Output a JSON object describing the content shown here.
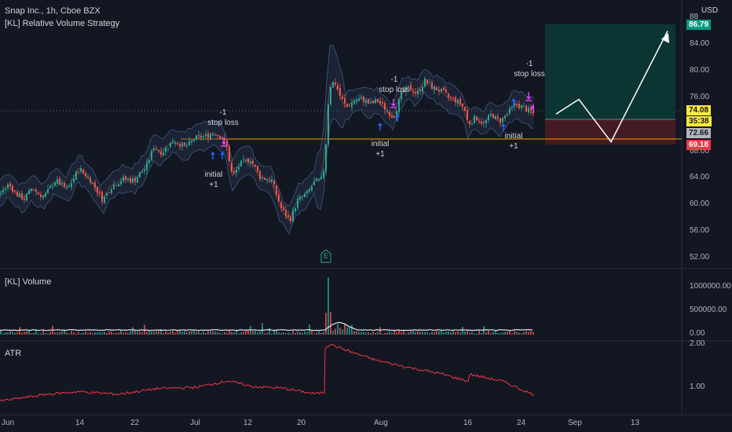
{
  "header": {
    "symbol_line": "Snap Inc., 1h, Cboe BZX",
    "strategy_line": "[KL] Relative Volume Strategy",
    "currency": "USD"
  },
  "price_axis": {
    "ticks": [
      "88",
      "84.00",
      "80.00",
      "76.00",
      "64.00",
      "60.00",
      "56.00",
      "52.00"
    ],
    "tags": {
      "target": "86.79",
      "last": "74.08",
      "countdown": "35:38",
      "entry": "72.66",
      "stop": "69.18",
      "hidden_tick": "68.00"
    }
  },
  "volume_pane": {
    "label": "[KL] Volume",
    "ticks": [
      "1000000.00",
      "500000.00",
      "0.00"
    ]
  },
  "atr_pane": {
    "label": "ATR",
    "ticks": [
      "2.00",
      "1.00"
    ]
  },
  "date_axis": [
    "Jun",
    "14",
    "22",
    "Jul",
    "12",
    "20",
    "Aug",
    "16",
    "24",
    "Sep",
    "13"
  ],
  "annotations": {
    "stop1_a": "-1",
    "stop1_b": "stop loss",
    "init1_a": "initial",
    "init1_b": "+1",
    "stop2_a": "-1",
    "stop2_b": "stop loss",
    "init2_a": "initial",
    "init2_b": "+1",
    "stop3_a": "-1",
    "stop3_b": "stop loss",
    "init3_a": "initial",
    "init3_b": "+1",
    "earnings": "E"
  },
  "colors": {
    "background": "#131722",
    "up": "#26a69a",
    "down": "#ef5350",
    "target_tag": "#089981",
    "stop_tag": "#f23645",
    "last_tag": "#ffeb3b",
    "entry_tag": "#b2b5be",
    "horizontal_line": "#ff9800",
    "atr_line": "#f23645",
    "entry_arrow": "#2962ff",
    "exit_arrow": "#e040fb"
  },
  "chart_data": {
    "type": "candlestick",
    "price_axis_range": [
      50,
      88
    ],
    "volume_axis_range": [
      0,
      1200000
    ],
    "atr_axis_range": [
      0.5,
      2.1
    ],
    "x_dates": [
      "Jun",
      "14",
      "22",
      "Jul",
      "12",
      "20",
      "Aug",
      "16",
      "24",
      "Sep",
      "13"
    ],
    "price_path": [
      [
        0,
        62.0
      ],
      [
        10,
        63.4
      ],
      [
        20,
        62.0
      ],
      [
        30,
        61.2
      ],
      [
        40,
        62.8
      ],
      [
        55,
        61.5
      ],
      [
        70,
        64.0
      ],
      [
        85,
        62.6
      ],
      [
        100,
        65.8
      ],
      [
        115,
        64.0
      ],
      [
        130,
        61.0
      ],
      [
        140,
        63.0
      ],
      [
        155,
        64.2
      ],
      [
        170,
        64.0
      ],
      [
        185,
        66.0
      ],
      [
        195,
        69.0
      ],
      [
        205,
        68.2
      ],
      [
        220,
        70.0
      ],
      [
        235,
        69.0
      ],
      [
        250,
        70.5
      ],
      [
        262,
        70.7
      ],
      [
        272,
        71.2
      ],
      [
        282,
        70.5
      ],
      [
        288,
        69.0
      ],
      [
        295,
        64.5
      ],
      [
        305,
        66.5
      ],
      [
        318,
        67.2
      ],
      [
        330,
        64.5
      ],
      [
        345,
        64.0
      ],
      [
        358,
        59.5
      ],
      [
        368,
        58.0
      ],
      [
        378,
        61.0
      ],
      [
        390,
        62.0
      ],
      [
        400,
        63.8
      ],
      [
        410,
        64.2
      ],
      [
        415,
        71.0
      ],
      [
        418,
        78.0
      ],
      [
        425,
        79.0
      ],
      [
        433,
        76.5
      ],
      [
        440,
        75.0
      ],
      [
        450,
        76.0
      ],
      [
        460,
        76.3
      ],
      [
        470,
        75.5
      ],
      [
        480,
        76.0
      ],
      [
        492,
        74.5
      ],
      [
        500,
        73.5
      ],
      [
        510,
        77.0
      ],
      [
        520,
        78.0
      ],
      [
        530,
        77.0
      ],
      [
        540,
        79.0
      ],
      [
        550,
        78.0
      ],
      [
        560,
        77.5
      ],
      [
        570,
        76.5
      ],
      [
        580,
        76.0
      ],
      [
        590,
        75.0
      ],
      [
        595,
        72.5
      ],
      [
        605,
        73.5
      ],
      [
        615,
        72.5
      ],
      [
        625,
        74.0
      ],
      [
        635,
        72.8
      ],
      [
        645,
        74.0
      ],
      [
        655,
        75.5
      ],
      [
        665,
        75.0
      ],
      [
        672,
        74.5
      ],
      [
        678,
        74.1
      ]
    ],
    "horizontal_line_price": 72.5,
    "trade_box": {
      "entry": 72.66,
      "target": 86.79,
      "stop": 69.18
    },
    "projection_path": [
      [
        708,
        74.0
      ],
      [
        737,
        76.2
      ],
      [
        778,
        69.8
      ],
      [
        850,
        86.5
      ]
    ],
    "atr_path": [
      [
        0,
        0.66
      ],
      [
        60,
        0.82
      ],
      [
        100,
        0.88
      ],
      [
        150,
        0.82
      ],
      [
        200,
        0.95
      ],
      [
        250,
        0.98
      ],
      [
        290,
        1.13
      ],
      [
        320,
        1.0
      ],
      [
        360,
        0.96
      ],
      [
        400,
        0.83
      ],
      [
        413,
        0.87
      ],
      [
        414,
        1.9
      ],
      [
        420,
        1.98
      ],
      [
        450,
        1.78
      ],
      [
        480,
        1.6
      ],
      [
        520,
        1.44
      ],
      [
        560,
        1.3
      ],
      [
        596,
        1.12
      ],
      [
        598,
        1.28
      ],
      [
        640,
        1.12
      ],
      [
        680,
        0.8
      ]
    ]
  }
}
